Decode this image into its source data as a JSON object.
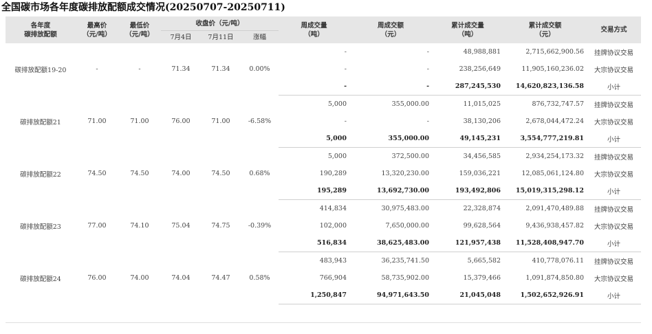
{
  "title": "全国碳市场各年度碳排放配额成交情况(20250707-20250711)",
  "header": {
    "year": "各年度\n碳排放配额",
    "high": "最高价\n（元/吨）",
    "low": "最低价\n（元/吨）",
    "close": "收盘价（元/吨）",
    "d1": "7月4日",
    "d2": "7月11日",
    "change": "涨幅",
    "wvol": "周成交量\n（吨）",
    "wamt": "周成交额\n（元）",
    "cvol": "累计成交量\n（吨）",
    "camt": "累计成交额\n（元）",
    "mode": "交易方式"
  },
  "groups": [
    {
      "name": "碳排放配额19-20",
      "high": "-",
      "low": "-",
      "d1": "71.34",
      "d2": "71.34",
      "change": "0.00%",
      "rows": [
        {
          "wvol": "-",
          "wamt": "-",
          "cvol": "48,988,881",
          "camt": "2,715,662,900.56",
          "mode": "挂牌协议交易"
        },
        {
          "wvol": "-",
          "wamt": "-",
          "cvol": "238,256,649",
          "camt": "11,905,160,236.02",
          "mode": "大宗协议交易"
        },
        {
          "wvol": "-",
          "wamt": "-",
          "cvol": "287,245,530",
          "camt": "14,620,823,136.58",
          "mode": "小计"
        }
      ]
    },
    {
      "name": "碳排放配额21",
      "high": "71.00",
      "low": "71.00",
      "d1": "76.00",
      "d2": "71.00",
      "change": "-6.58%",
      "rows": [
        {
          "wvol": "5,000",
          "wamt": "355,000.00",
          "cvol": "11,015,025",
          "camt": "876,732,747.57",
          "mode": "挂牌协议交易"
        },
        {
          "wvol": "-",
          "wamt": "-",
          "cvol": "38,130,206",
          "camt": "2,678,044,472.24",
          "mode": "大宗协议交易"
        },
        {
          "wvol": "5,000",
          "wamt": "355,000.00",
          "cvol": "49,145,231",
          "camt": "3,554,777,219.81",
          "mode": "小计"
        }
      ]
    },
    {
      "name": "碳排放配额22",
      "high": "74.50",
      "low": "74.50",
      "d1": "74.00",
      "d2": "74.50",
      "change": "0.68%",
      "rows": [
        {
          "wvol": "5,000",
          "wamt": "372,500.00",
          "cvol": "34,456,585",
          "camt": "2,934,254,173.32",
          "mode": "挂牌协议交易"
        },
        {
          "wvol": "190,289",
          "wamt": "13,320,230.00",
          "cvol": "159,036,221",
          "camt": "12,085,061,124.80",
          "mode": "大宗协议交易"
        },
        {
          "wvol": "195,289",
          "wamt": "13,692,730.00",
          "cvol": "193,492,806",
          "camt": "15,019,315,298.12",
          "mode": "小计"
        }
      ]
    },
    {
      "name": "碳排放配额23",
      "high": "77.00",
      "low": "74.10",
      "d1": "75.04",
      "d2": "74.75",
      "change": "-0.39%",
      "rows": [
        {
          "wvol": "414,834",
          "wamt": "30,975,483.00",
          "cvol": "22,328,874",
          "camt": "2,091,470,489.88",
          "mode": "挂牌协议交易"
        },
        {
          "wvol": "102,000",
          "wamt": "7,650,000.00",
          "cvol": "99,628,564",
          "camt": "9,436,938,457.82",
          "mode": "大宗协议交易"
        },
        {
          "wvol": "516,834",
          "wamt": "38,625,483.00",
          "cvol": "121,957,438",
          "camt": "11,528,408,947.70",
          "mode": "小计"
        }
      ]
    },
    {
      "name": "碳排放配额24",
      "high": "76.00",
      "low": "74.00",
      "d1": "74.04",
      "d2": "74.47",
      "change": "0.58%",
      "rows": [
        {
          "wvol": "483,943",
          "wamt": "36,235,741.50",
          "cvol": "5,665,582",
          "camt": "410,778,076.11",
          "mode": "挂牌协议交易"
        },
        {
          "wvol": "766,904",
          "wamt": "58,735,902.00",
          "cvol": "15,379,466",
          "camt": "1,091,874,850.80",
          "mode": "大宗协议交易"
        },
        {
          "wvol": "1,250,847",
          "wamt": "94,971,643.50",
          "cvol": "21,045,048",
          "camt": "1,502,652,926.91",
          "mode": "小计"
        }
      ]
    }
  ]
}
